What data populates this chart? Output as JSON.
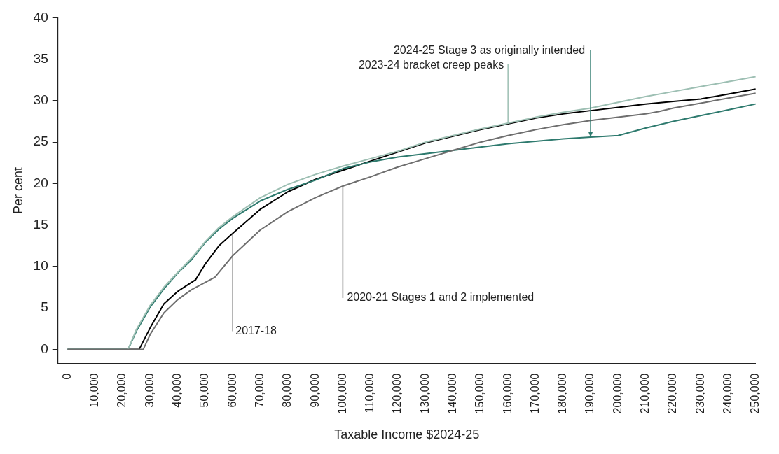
{
  "chart_data": {
    "type": "line",
    "xlabel": "Taxable Income $2024-25",
    "ylabel": "Per cent",
    "xlim": [
      -3500,
      250000
    ],
    "ylim": [
      -1.7,
      40
    ],
    "xticks": [
      0,
      {
        "value": 10000,
        "label": "10,000"
      },
      {
        "value": 20000,
        "label": "20,000"
      },
      {
        "value": 30000,
        "label": "30,000"
      },
      {
        "value": 40000,
        "label": "40,000"
      },
      {
        "value": 50000,
        "label": "50,000"
      },
      {
        "value": 60000,
        "label": "60,000"
      },
      {
        "value": 70000,
        "label": "70,000"
      },
      {
        "value": 80000,
        "label": "80,000"
      },
      {
        "value": 90000,
        "label": "90,000"
      },
      {
        "value": 100000,
        "label": "100,000"
      },
      {
        "value": 110000,
        "label": "110,000"
      },
      {
        "value": 120000,
        "label": "120,000"
      },
      {
        "value": 130000,
        "label": "130,000"
      },
      {
        "value": 140000,
        "label": "140,000"
      },
      {
        "value": 150000,
        "label": "150,000"
      },
      {
        "value": 160000,
        "label": "160,000"
      },
      {
        "value": 170000,
        "label": "170,000"
      },
      {
        "value": 180000,
        "label": "180,000"
      },
      {
        "value": 190000,
        "label": "190,000"
      },
      {
        "value": 200000,
        "label": "200,000"
      },
      {
        "value": 210000,
        "label": "210,000"
      },
      {
        "value": 220000,
        "label": "220,000"
      },
      {
        "value": 230000,
        "label": "230,000"
      },
      {
        "value": 240000,
        "label": "240,000"
      },
      {
        "value": 250000,
        "label": "250,000"
      }
    ],
    "yticks": [
      0,
      5,
      10,
      15,
      20,
      25,
      30,
      35,
      40
    ],
    "grid": false,
    "legend": false,
    "marker": "none",
    "line_style": "solid",
    "series": [
      {
        "color": "#6e6e6e",
        "x": [
          0,
          27500,
          30000,
          35000,
          40000,
          45000,
          53500,
          60000,
          70000,
          80000,
          90000,
          100000,
          110000,
          120000,
          130000,
          140000,
          150000,
          160000,
          170000,
          180000,
          190000,
          200000,
          210000,
          215000,
          220000,
          230000,
          240000,
          250000
        ],
        "values": [
          0,
          0,
          1.8,
          4.4,
          6.0,
          7.2,
          8.7,
          11.3,
          14.4,
          16.6,
          18.3,
          19.7,
          20.8,
          22.0,
          23.0,
          24.0,
          25.0,
          25.8,
          26.5,
          27.1,
          27.6,
          28.0,
          28.4,
          28.7,
          29.1,
          29.7,
          30.3,
          30.9
        ]
      },
      {
        "color": "#9dbfb3",
        "x": [
          0,
          22000,
          25000,
          30000,
          35000,
          40000,
          45000,
          50000,
          55000,
          60000,
          70000,
          80000,
          90000,
          100000,
          110000,
          120000,
          130000,
          140000,
          150000,
          160000,
          170000,
          180000,
          190000,
          200000,
          210000,
          220000,
          230000,
          240000,
          250000
        ],
        "values": [
          0,
          0,
          2.4,
          5.3,
          7.5,
          9.3,
          11.0,
          13.0,
          14.7,
          16.0,
          18.3,
          19.9,
          21.1,
          22.1,
          23.0,
          23.9,
          25.0,
          25.8,
          26.6,
          27.3,
          28.0,
          28.6,
          29.1,
          29.8,
          30.5,
          31.1,
          31.7,
          32.3,
          32.9
        ]
      },
      {
        "color": "#2e7a6e",
        "x": [
          0,
          22000,
          25000,
          30000,
          35000,
          40000,
          45000,
          50000,
          55000,
          60000,
          70000,
          80000,
          90000,
          100000,
          110000,
          120000,
          130000,
          140000,
          150000,
          160000,
          170000,
          180000,
          190000,
          200000,
          210000,
          220000,
          230000,
          240000,
          250000
        ],
        "values": [
          0,
          0,
          2.2,
          5.1,
          7.3,
          9.2,
          10.8,
          12.9,
          14.5,
          15.8,
          17.9,
          19.3,
          20.4,
          21.8,
          22.6,
          23.2,
          23.6,
          24.0,
          24.4,
          24.8,
          25.1,
          25.4,
          25.6,
          25.8,
          26.7,
          27.5,
          28.2,
          28.9,
          29.6
        ]
      },
      {
        "color": "#000000",
        "x": [
          0,
          26000,
          30000,
          35000,
          40000,
          46500,
          50000,
          55000,
          60000,
          70000,
          80000,
          90000,
          100000,
          110000,
          120000,
          130000,
          140000,
          150000,
          160000,
          170000,
          180000,
          190000,
          200000,
          210000,
          220000,
          230000,
          240000,
          250000
        ],
        "values": [
          0,
          0,
          2.6,
          5.5,
          7.0,
          8.4,
          10.3,
          12.5,
          14.0,
          16.9,
          19.0,
          20.5,
          21.6,
          22.7,
          23.8,
          24.9,
          25.7,
          26.5,
          27.2,
          27.9,
          28.4,
          28.8,
          29.2,
          29.6,
          29.9,
          30.2,
          30.8,
          31.4
        ]
      }
    ],
    "annotations": [
      {
        "text": "2017-18",
        "x": 60000,
        "y": 14.0
      },
      {
        "text": "2020-21 Stages 1 and 2 implemented",
        "x": 100000,
        "y": 19.7
      },
      {
        "text": "2023-24 bracket creep peaks",
        "x": 160000,
        "y": 27.2
      },
      {
        "text": "2024-25 Stage 3 as originally intended",
        "x": 190000,
        "y": 25.6
      }
    ]
  }
}
